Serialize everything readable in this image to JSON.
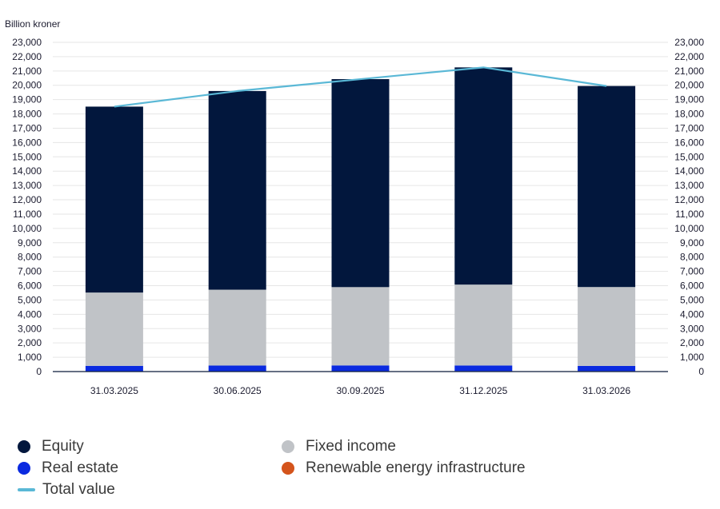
{
  "chart_data": {
    "type": "bar",
    "stacked": true,
    "ylabel": "Billion kroner",
    "categories": [
      "31.03.2025",
      "30.06.2025",
      "30.09.2025",
      "31.12.2025",
      "31.03.2026"
    ],
    "ylim": [
      0,
      23000
    ],
    "yticks": [
      0,
      1000,
      2000,
      3000,
      4000,
      5000,
      6000,
      7000,
      8000,
      9000,
      10000,
      11000,
      12000,
      13000,
      14000,
      15000,
      16000,
      17000,
      18000,
      19000,
      20000,
      21000,
      22000,
      23000
    ],
    "ytick_labels": [
      "0",
      "1,000",
      "2,000",
      "3,000",
      "4,000",
      "5,000",
      "6,000",
      "7,000",
      "8,000",
      "9,000",
      "10,000",
      "11,000",
      "12,000",
      "13,000",
      "14,000",
      "15,000",
      "16,000",
      "17,000",
      "18,000",
      "19,000",
      "20,000",
      "21,000",
      "22,000",
      "23,000"
    ],
    "grid": true,
    "dual_y_axis": true,
    "legend_position": "bottom",
    "series": [
      {
        "name": "Renewable energy infrastructure",
        "color": "#d4541c",
        "values": [
          30,
          30,
          30,
          35,
          35
        ]
      },
      {
        "name": "Real estate",
        "color": "#0a2ae0",
        "values": [
          370,
          390,
          400,
          390,
          360
        ]
      },
      {
        "name": "Fixed income",
        "color": "#c0c3c7",
        "values": [
          5120,
          5300,
          5470,
          5650,
          5510
        ]
      },
      {
        "name": "Equity",
        "color": "#02173d",
        "values": [
          12990,
          13880,
          14530,
          15175,
          14045
        ]
      }
    ],
    "line_series": {
      "name": "Total value",
      "color": "#5ab8d6",
      "values": [
        18510,
        19600,
        20430,
        21250,
        19950
      ]
    }
  },
  "legend": [
    {
      "label": "Equity",
      "color": "#02173d",
      "kind": "dot"
    },
    {
      "label": "Fixed income",
      "color": "#c0c3c7",
      "kind": "dot"
    },
    {
      "label": "Real estate",
      "color": "#0a2ae0",
      "kind": "dot"
    },
    {
      "label": "Renewable energy infrastructure",
      "color": "#d4541c",
      "kind": "dot"
    },
    {
      "label": "Total value",
      "color": "#5ab8d6",
      "kind": "line"
    }
  ]
}
